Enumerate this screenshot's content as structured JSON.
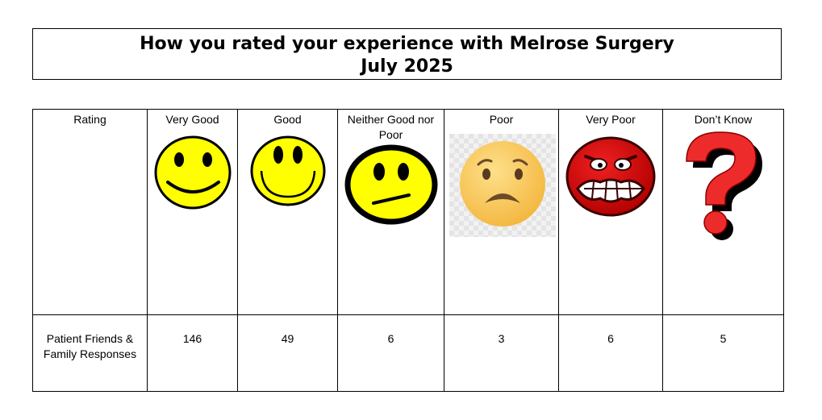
{
  "title": {
    "line1": "How you rated your experience with Melrose Surgery",
    "line2": "July 2025"
  },
  "table": {
    "row_header": "Rating",
    "responses_label": "Patient Friends & Family Responses",
    "columns": [
      {
        "label": "Very Good",
        "icon": "very-good-smiley-icon",
        "count": "146"
      },
      {
        "label": "Good",
        "icon": "good-smiley-icon",
        "count": "49"
      },
      {
        "label": "Neither Good nor Poor",
        "icon": "neutral-face-icon",
        "count": "6"
      },
      {
        "label": "Poor",
        "icon": "worried-face-icon",
        "count": "3"
      },
      {
        "label": "Very Poor",
        "icon": "angry-face-icon",
        "count": "6"
      },
      {
        "label": "Don’t Know",
        "icon": "question-mark-icon",
        "count": "5"
      }
    ]
  },
  "colors": {
    "smiley_yellow": "#ffff00",
    "worried_face": "#f7c44e",
    "angry_red": "#d10f0f",
    "question_red": "#ee2b2b"
  }
}
